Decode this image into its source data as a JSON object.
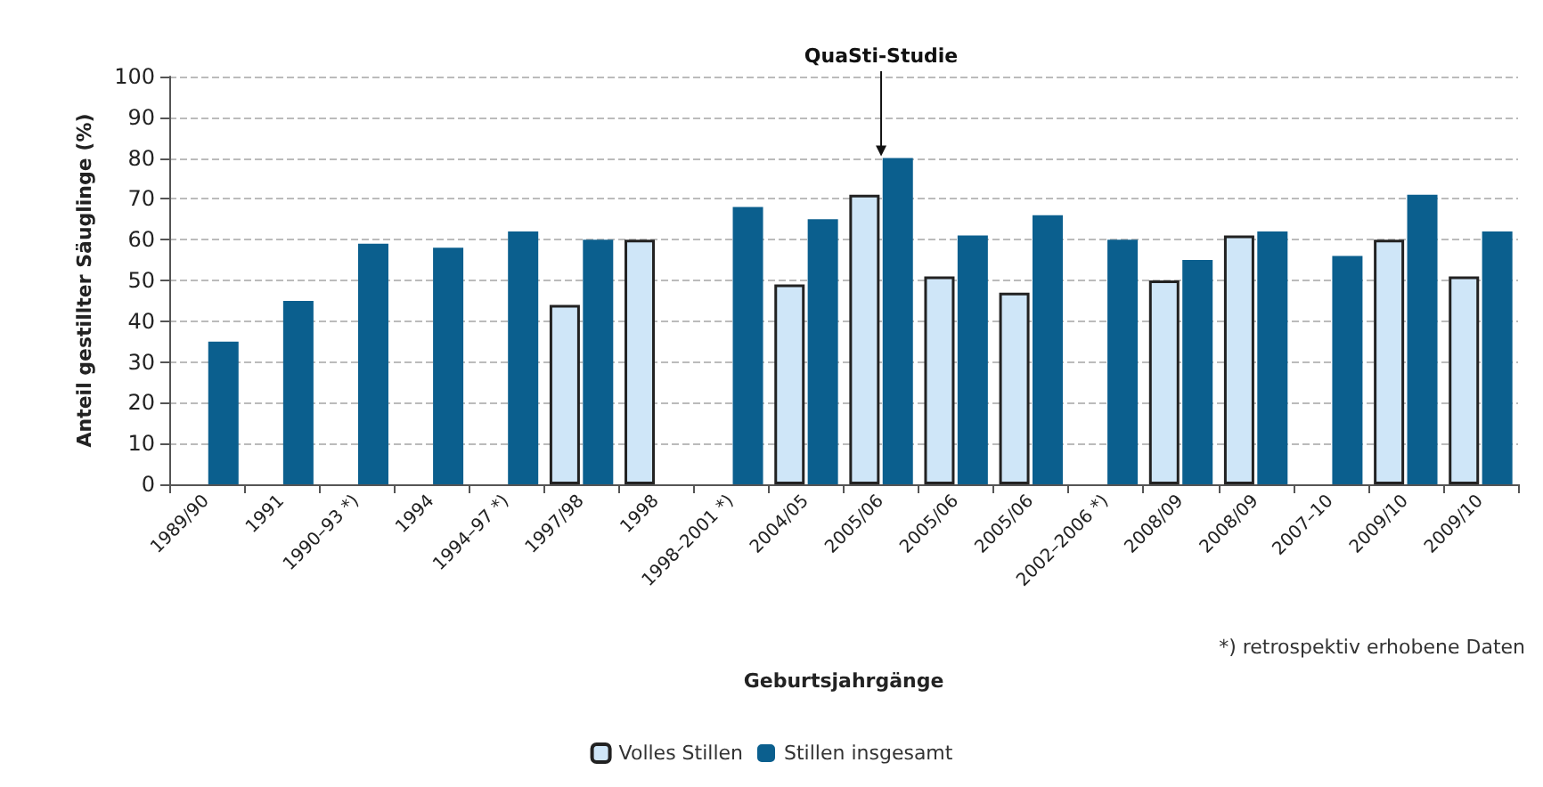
{
  "chart_data": {
    "type": "bar",
    "xlabel": "Geburtsjahrgänge",
    "ylabel": "Anteil gestillter Säuglinge (%)",
    "categories": [
      "1989/90",
      "1991",
      "1990–93 *)",
      "1994",
      "1994–97 *)",
      "1997/98",
      "1998",
      "1998–2001 *)",
      "2004/05",
      "2005/06",
      "2005/06",
      "2005/06",
      "2002–2006 *)",
      "2008/09",
      "2008/09",
      "2007–10",
      "2009/10",
      "2009/10"
    ],
    "series": [
      {
        "name": "Volles Stillen",
        "color": "#cfe6f8",
        "values": [
          null,
          null,
          null,
          null,
          null,
          44,
          60,
          null,
          49,
          71,
          51,
          47,
          null,
          50,
          61,
          null,
          60,
          51
        ]
      },
      {
        "name": "Stillen insgesamt",
        "color": "#0b5f8e",
        "values": [
          35,
          45,
          59,
          58,
          62,
          60,
          null,
          68,
          65,
          80,
          61,
          66,
          60,
          55,
          62,
          56,
          71,
          62
        ]
      }
    ],
    "ylim": [
      0,
      100
    ],
    "yticks": [
      0,
      10,
      20,
      30,
      40,
      50,
      60,
      70,
      80,
      90,
      100
    ],
    "grid": "y",
    "legend": "bottom",
    "annotations": [
      {
        "text": "QuaSti-Studie",
        "x": "2005/06",
        "y": 80
      },
      "*) retrospektiv erhobene Daten"
    ]
  }
}
